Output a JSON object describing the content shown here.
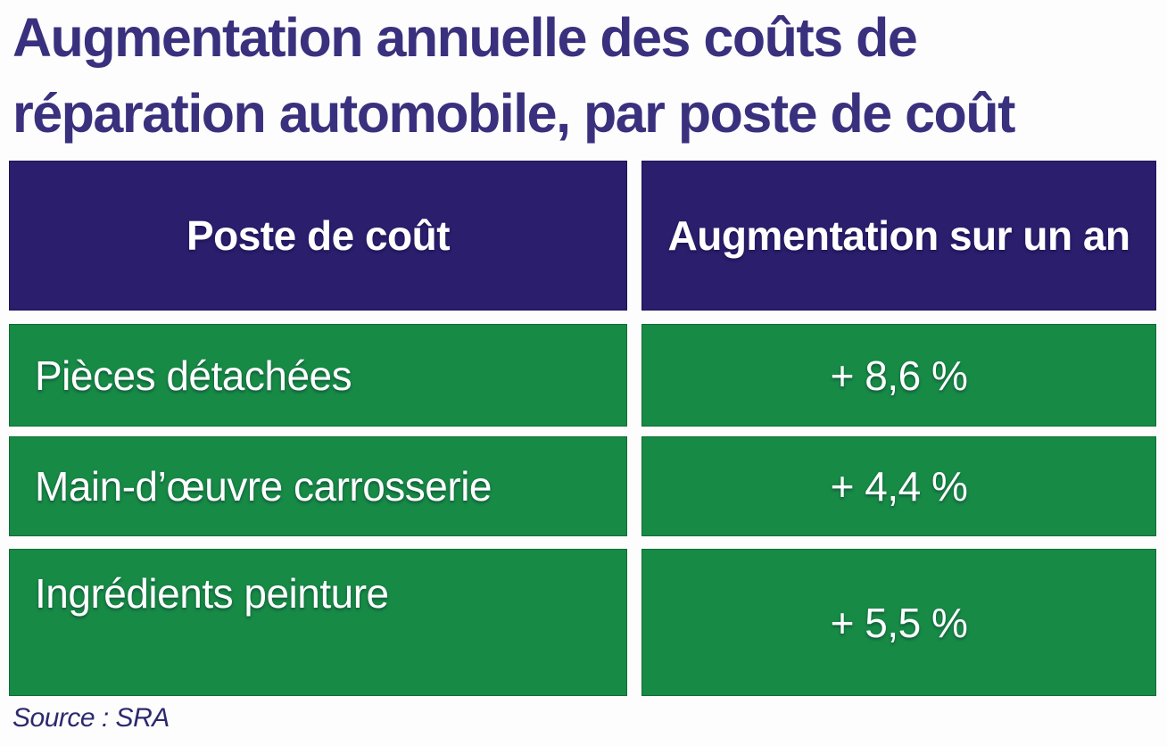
{
  "title_lines": [
    "Augmentation annuelle des coûts de",
    "réparation automobile, par poste de coût"
  ],
  "table": {
    "headers": [
      "Poste de coût",
      "Augmentation sur un an"
    ],
    "rows": [
      {
        "label": "Pièces détachées",
        "value": "+ 8,6 %"
      },
      {
        "label": "Main-d’œuvre carrosserie",
        "value": "+ 4,4 %"
      },
      {
        "label": "Ingrédients peinture",
        "value": "+ 5,5 %"
      }
    ]
  },
  "source": "Source : SRA",
  "colors": {
    "title_text": "#39317e",
    "header_bg": "#2a1e6d",
    "row_bg": "#178a45",
    "cell_text": "#ffffff",
    "source_text": "#2b2a6e",
    "page_bg": "#fdfdfd"
  },
  "chart_data": {
    "type": "table",
    "title": "Augmentation annuelle des coûts de réparation automobile, par poste de coût",
    "columns": [
      "Poste de coût",
      "Augmentation sur un an"
    ],
    "categories": [
      "Pièces détachées",
      "Main-d’œuvre carrosserie",
      "Ingrédients peinture"
    ],
    "values": [
      8.6,
      4.4,
      5.5
    ],
    "value_unit": "percent_increase_over_one_year",
    "value_labels": [
      "+ 8,6 %",
      "+ 4,4 %",
      "+ 5,5 %"
    ],
    "source": "Source : SRA"
  }
}
